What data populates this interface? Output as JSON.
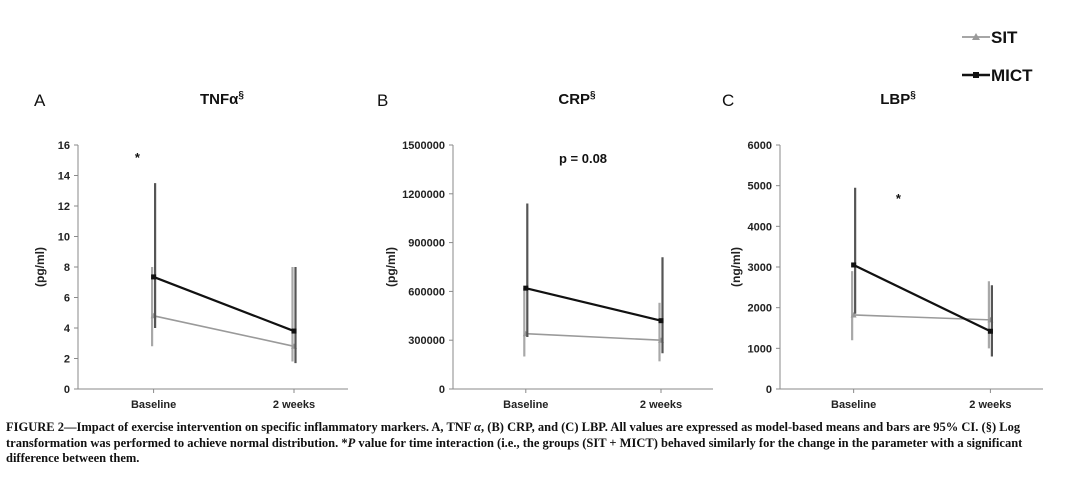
{
  "legend": {
    "position": "top-right",
    "entries": [
      {
        "label": "SIT",
        "color": "#9a9a9a",
        "marker": "triangle"
      },
      {
        "label": "MICT",
        "color": "#111111",
        "marker": "square"
      }
    ]
  },
  "chart_data": [
    {
      "type": "line",
      "panel": "A",
      "title": "TNFα",
      "title_sup": "§",
      "ylabel": "(pg/ml)",
      "ylim": [
        0,
        16
      ],
      "yticks": [
        "0",
        "2",
        "4",
        "6",
        "8",
        "10",
        "12",
        "14",
        "16"
      ],
      "ytick_values": [
        0,
        2,
        4,
        6,
        8,
        10,
        12,
        14,
        16
      ],
      "categories": [
        "Baseline",
        "2 weeks"
      ],
      "annotation": {
        "text": "*",
        "x": 0.22,
        "y": 15.2
      },
      "series": [
        {
          "name": "SIT",
          "values": [
            4.8,
            2.8
          ],
          "ci_low": [
            2.8,
            1.8
          ],
          "ci_high": [
            8.0,
            8.0
          ]
        },
        {
          "name": "MICT",
          "values": [
            7.35,
            3.8
          ],
          "ci_low": [
            4.0,
            1.7
          ],
          "ci_high": [
            13.5,
            8.0
          ]
        }
      ]
    },
    {
      "type": "line",
      "panel": "B",
      "title": "CRP",
      "title_sup": "§",
      "ylabel": "(pg/ml)",
      "ylim": [
        0,
        1500000
      ],
      "yticks": [
        "0",
        "300000",
        "600000",
        "900000",
        "1200000",
        "1500000"
      ],
      "ytick_values": [
        0,
        300000,
        600000,
        900000,
        1200000,
        1500000
      ],
      "categories": [
        "Baseline",
        "2 weeks"
      ],
      "annotation": {
        "text": "p = 0.08",
        "x": 0.5,
        "y": 1420000
      },
      "series": [
        {
          "name": "SIT",
          "values": [
            340000,
            300000
          ],
          "ci_low": [
            200000,
            170000
          ],
          "ci_high": [
            620000,
            530000
          ]
        },
        {
          "name": "MICT",
          "values": [
            620000,
            420000
          ],
          "ci_low": [
            320000,
            220000
          ],
          "ci_high": [
            1140000,
            810000
          ]
        }
      ]
    },
    {
      "type": "line",
      "panel": "C",
      "title": "LBP",
      "title_sup": "§",
      "ylabel": "(ng/ml)",
      "ylim": [
        0,
        6000
      ],
      "yticks": [
        "0",
        "1000",
        "2000",
        "3000",
        "4000",
        "5000",
        "6000"
      ],
      "ytick_values": [
        0,
        1000,
        2000,
        3000,
        4000,
        5000,
        6000
      ],
      "categories": [
        "Baseline",
        "2 weeks"
      ],
      "annotation": {
        "text": "*",
        "x": 0.45,
        "y": 4700
      },
      "series": [
        {
          "name": "SIT",
          "values": [
            1820,
            1700
          ],
          "ci_low": [
            1200,
            1000
          ],
          "ci_high": [
            2900,
            2650
          ]
        },
        {
          "name": "MICT",
          "values": [
            3050,
            1420
          ],
          "ci_low": [
            1850,
            800
          ],
          "ci_high": [
            4950,
            2550
          ]
        }
      ]
    }
  ],
  "caption": {
    "prefix": "FIGURE 2—Impact of exercise intervention on specific inflammatory markers. A, TNF ",
    "alpha": "α",
    "mid": ", (B) CRP, and (C) LBP. All values are expressed as model-based means and bars are 95% CI. (§) Log transformation was performed to achieve normal distribution. *",
    "p": "P",
    "suffix": " value for time interaction (i.e., the groups (SIT + MICT) behaved similarly for the change in the parameter with a significant difference between them."
  }
}
